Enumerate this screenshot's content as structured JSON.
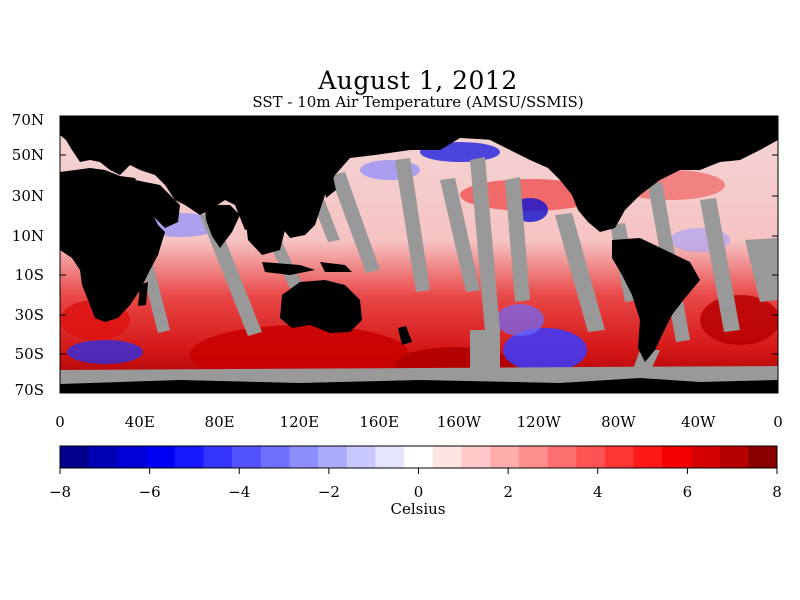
{
  "title": "August 1, 2012",
  "subtitle": "SST - 10m Air Temperature (AMSU/SSMIS)",
  "map": {
    "lat_ticks": [
      "70N",
      "50N",
      "30N",
      "10N",
      "10S",
      "30S",
      "50S",
      "70S"
    ],
    "lon_ticks": [
      "0",
      "40E",
      "80E",
      "120E",
      "160E",
      "160W",
      "120W",
      "80W",
      "40W",
      "0"
    ],
    "colors": {
      "land": "#000000",
      "no_data": "#999999"
    }
  },
  "colorbar": {
    "ticks": [
      "−8",
      "−6",
      "−4",
      "−2",
      "0",
      "2",
      "4",
      "6",
      "8"
    ],
    "label": "Celsius",
    "range": [
      -8,
      8
    ],
    "colors": [
      "#00008a",
      "#0000b4",
      "#0000d6",
      "#0000f4",
      "#1818ff",
      "#3434ff",
      "#5252ff",
      "#7070ff",
      "#8e8eff",
      "#acacff",
      "#c9c9ff",
      "#e4e4ff",
      "#ffffff",
      "#ffe4e4",
      "#ffc9c9",
      "#ffacac",
      "#ff8e8e",
      "#ff7070",
      "#ff5252",
      "#ff3434",
      "#ff1818",
      "#f40000",
      "#d60000",
      "#b40000",
      "#8a0000"
    ]
  }
}
